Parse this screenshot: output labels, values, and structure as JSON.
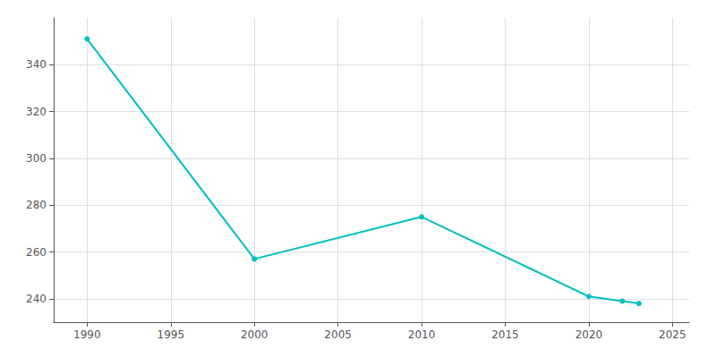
{
  "chart_data": {
    "type": "line",
    "x": [
      1990,
      2000,
      2010,
      2020,
      2022,
      2023
    ],
    "values": [
      351,
      257,
      275,
      241,
      239,
      238
    ],
    "color": "#00BFBF",
    "marker": "circle",
    "xlim": [
      1988,
      2026
    ],
    "xticks": [
      1990,
      1995,
      2000,
      2005,
      2010,
      2015,
      2020,
      2025
    ],
    "ylim": [
      230,
      360
    ],
    "yticks": [
      240,
      260,
      280,
      300,
      320,
      340
    ],
    "grid": true
  }
}
